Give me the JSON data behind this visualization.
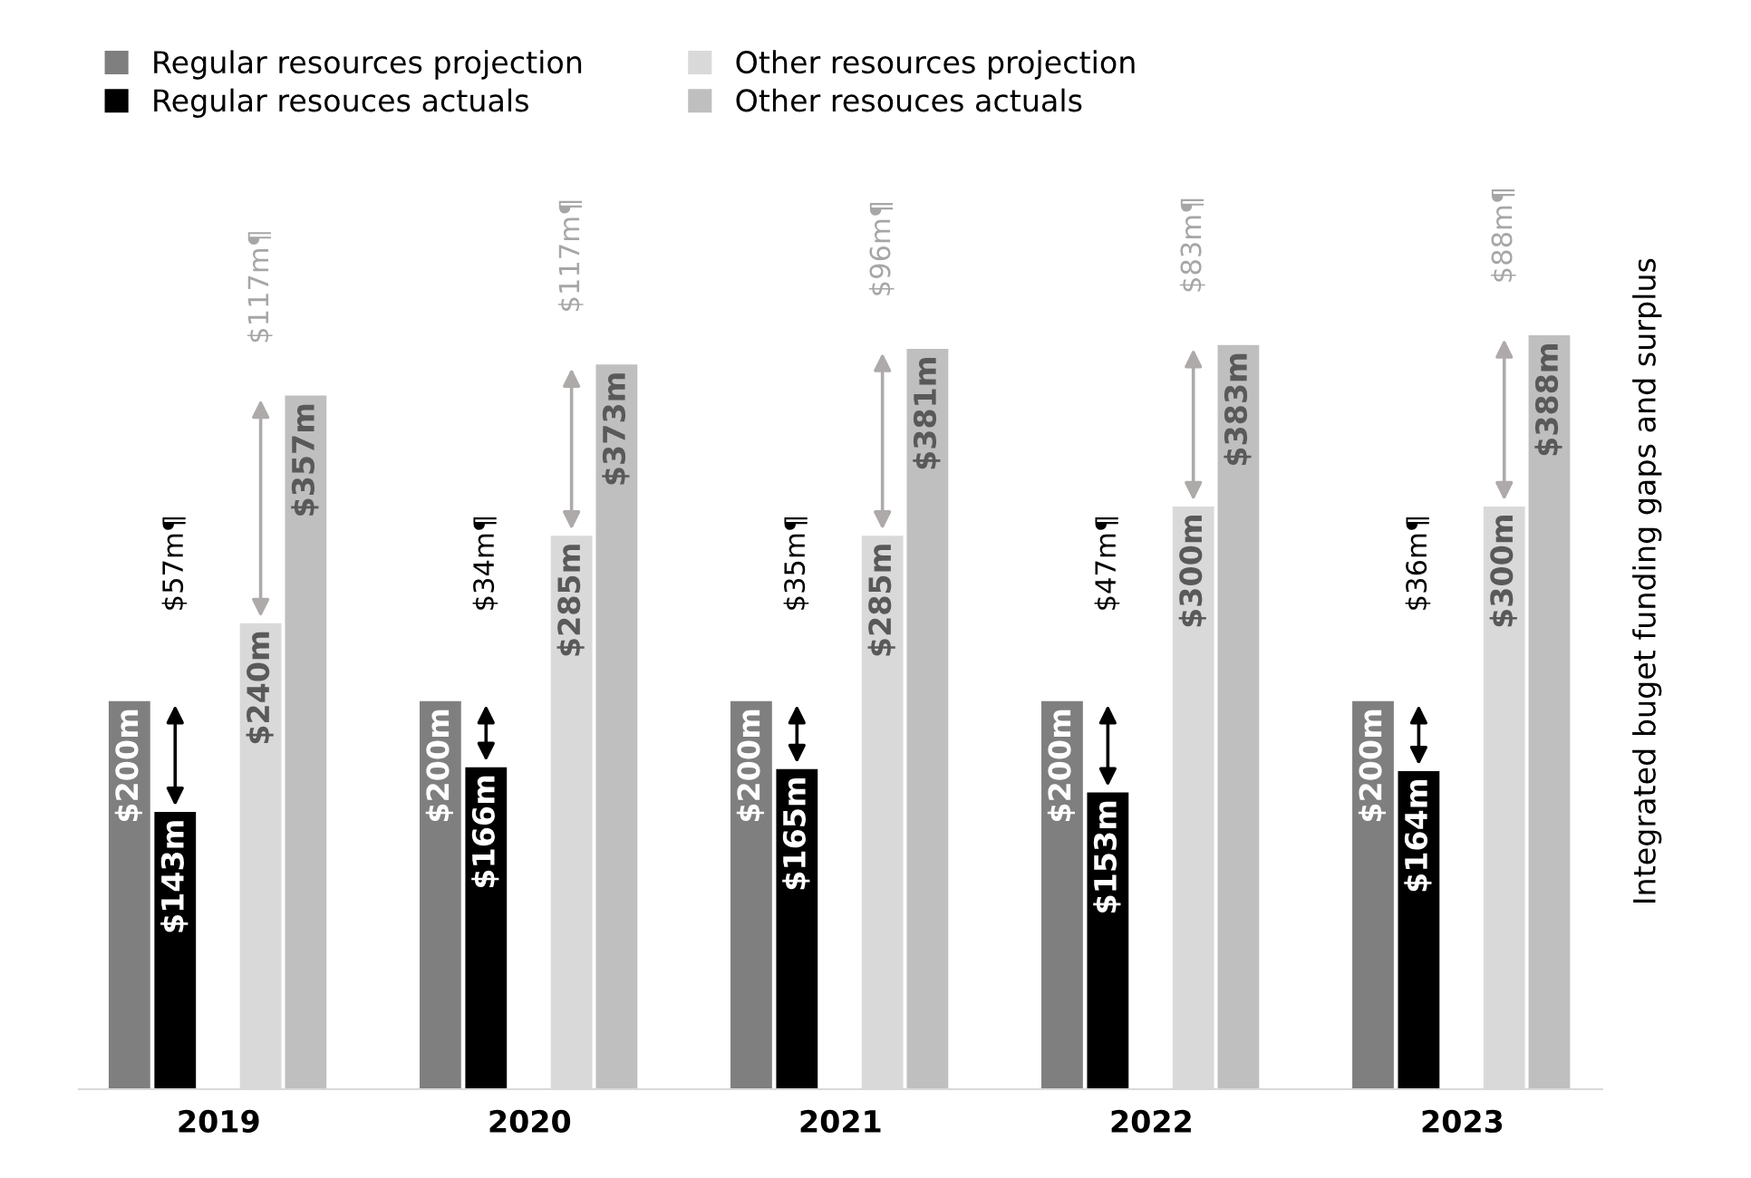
{
  "chart_data": {
    "type": "bar",
    "categories": [
      "2019",
      "2020",
      "2021",
      "2022",
      "2023"
    ],
    "series": [
      {
        "name": "Regular resources projection",
        "color": "#7f7f7f",
        "values": [
          200,
          200,
          200,
          200,
          200
        ],
        "value_labels": [
          "$200m",
          "$200m",
          "$200m",
          "$200m",
          "$200m"
        ]
      },
      {
        "name": "Regular resouces actuals",
        "color": "#000000",
        "values": [
          143,
          166,
          165,
          153,
          164
        ],
        "value_labels": [
          "$143m",
          "$166m",
          "$165m",
          "$153m",
          "$164m"
        ]
      },
      {
        "name": "Other resources projection",
        "color": "#d9d9d9",
        "values": [
          240,
          285,
          285,
          300,
          300
        ],
        "value_labels": [
          "$240m",
          "$285m",
          "$285m",
          "$300m",
          "$300m"
        ]
      },
      {
        "name": "Other resouces actuals",
        "color": "#bfbfbf",
        "values": [
          357,
          373,
          381,
          383,
          388
        ],
        "value_labels": [
          "$357m",
          "$373m",
          "$381m",
          "$383m",
          "$388m"
        ]
      }
    ],
    "ylabel": "Integrated buget funding gaps and surplus",
    "annotations": [
      "$57m¶",
      "$34m¶",
      "$35m¶",
      "$47m¶",
      "$36m¶",
      "$117m¶",
      "$117m¶",
      "$96m¶",
      "$83m¶",
      "$88m¶"
    ],
    "legend": "top left",
    "grid": false
  }
}
